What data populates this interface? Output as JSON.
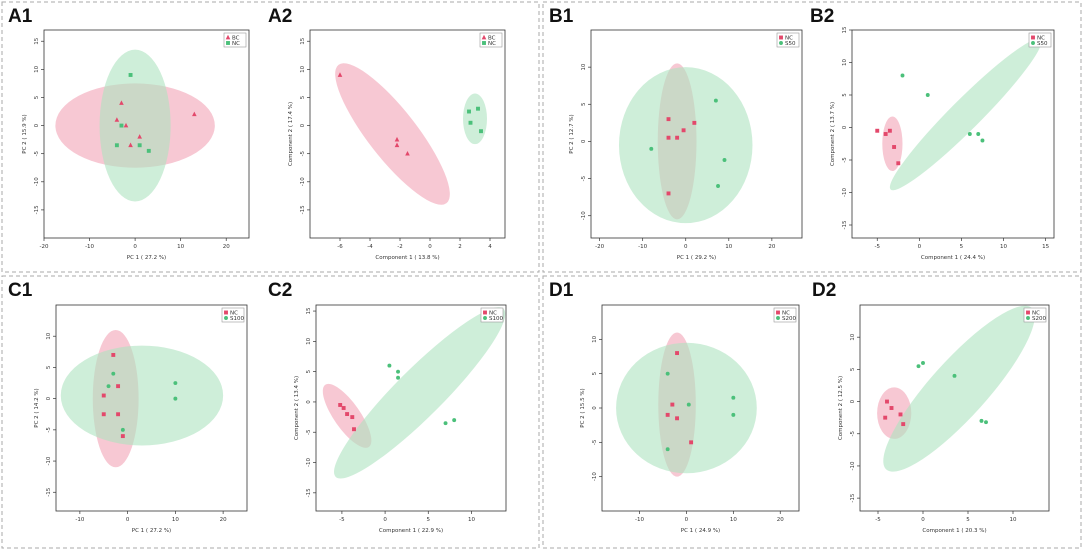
{
  "colors": {
    "red": "#e3486b",
    "red_fill": "#f2a3b6",
    "green": "#4bc07a",
    "green_fill": "#aee3bf"
  },
  "groups": [
    {
      "label": "A1",
      "subtitle": "",
      "order": 0
    },
    {
      "label": "B1",
      "subtitle": "",
      "order": 1
    },
    {
      "label": "C1",
      "subtitle": "",
      "order": 2
    },
    {
      "label": "D1",
      "subtitle": "",
      "order": 3
    }
  ],
  "chart_data": [
    {
      "panel": "A1",
      "type": "scatter",
      "xlabel": "PC 1 ( 27.2 %)",
      "ylabel": "PC 2 ( 15.9 %)",
      "xlim": [
        -20,
        25
      ],
      "ylim": [
        -20,
        17
      ],
      "xticks": [
        -20,
        -10,
        0,
        10,
        20
      ],
      "yticks": [
        -15,
        -10,
        -5,
        0,
        5,
        10,
        15
      ],
      "series": [
        {
          "name": "BC",
          "marker": "triangle",
          "color": "red",
          "points": [
            [
              -3,
              4
            ],
            [
              -4,
              1
            ],
            [
              -2,
              0
            ],
            [
              1,
              -2
            ],
            [
              -1,
              -3.5
            ],
            [
              13,
              2
            ]
          ],
          "ellipse": {
            "cx": 0,
            "cy": 0,
            "rx": 17.5,
            "ry": 7.5,
            "angle": 0
          }
        },
        {
          "name": "NC",
          "marker": "square",
          "color": "green",
          "points": [
            [
              -1,
              9
            ],
            [
              -3,
              0
            ],
            [
              -4,
              -3.5
            ],
            [
              1,
              -3.5
            ],
            [
              3,
              -4.5
            ]
          ],
          "ellipse": {
            "cx": 0,
            "cy": 0,
            "rx": 7.8,
            "ry": 13.5,
            "angle": 0
          }
        }
      ],
      "legend_order": [
        "BC",
        "NC"
      ]
    },
    {
      "panel": "A2",
      "type": "scatter",
      "xlabel": "Component 1 ( 13.8 %)",
      "ylabel": "Component 2 ( 17.4 %)",
      "xlim": [
        -8,
        5
      ],
      "ylim": [
        -20,
        17
      ],
      "xticks": [
        -6,
        -4,
        -2,
        0,
        2,
        4
      ],
      "yticks": [
        -15,
        -10,
        -5,
        0,
        5,
        10,
        15
      ],
      "series": [
        {
          "name": "BC",
          "marker": "triangle",
          "color": "red",
          "points": [
            [
              -6,
              9
            ],
            [
              -2.2,
              -2.5
            ],
            [
              -2.2,
              -3.5
            ],
            [
              -1.5,
              -5
            ]
          ],
          "ellipse": {
            "cx": -2.5,
            "cy": -1.5,
            "rx": 3.6,
            "ry": 1.0,
            "angle": 52,
            "units": "norm"
          }
        },
        {
          "name": "NC",
          "marker": "square",
          "color": "green",
          "points": [
            [
              2.6,
              2.5
            ],
            [
              3.2,
              3
            ],
            [
              2.7,
              0.5
            ],
            [
              3.4,
              -1
            ]
          ],
          "ellipse": {
            "cx": 3.0,
            "cy": 1.2,
            "rx": 0.8,
            "ry": 4.5,
            "angle": 0
          }
        }
      ],
      "legend_order": [
        "BC",
        "NC"
      ]
    },
    {
      "panel": "B1",
      "type": "scatter",
      "xlabel": "PC 1 ( 29.2 %)",
      "ylabel": "PC 2 ( 12.7 %)",
      "xlim": [
        -22,
        27
      ],
      "ylim": [
        -13,
        15
      ],
      "xticks": [
        -20,
        -10,
        0,
        10,
        20
      ],
      "yticks": [
        -10,
        -5,
        0,
        5,
        10
      ],
      "series": [
        {
          "name": "NC",
          "marker": "square",
          "color": "red",
          "points": [
            [
              -4,
              3
            ],
            [
              2,
              2.5
            ],
            [
              -0.5,
              1.5
            ],
            [
              -4,
              0.5
            ],
            [
              -2,
              0.5
            ],
            [
              -4,
              -7
            ]
          ],
          "ellipse": {
            "cx": -2,
            "cy": 0,
            "rx": 4.5,
            "ry": 10.5,
            "angle": 0
          }
        },
        {
          "name": "S50",
          "marker": "circle",
          "color": "green",
          "points": [
            [
              7,
              5.5
            ],
            [
              -8,
              -1
            ],
            [
              9,
              -2.5
            ],
            [
              7.5,
              -6
            ]
          ],
          "ellipse": {
            "cx": 0,
            "cy": -0.5,
            "rx": 15.5,
            "ry": 10.5,
            "angle": 0
          }
        }
      ],
      "legend_order": [
        "NC",
        "S50"
      ]
    },
    {
      "panel": "B2",
      "type": "scatter",
      "xlabel": "Component 1 ( 24.4 %)",
      "ylabel": "Component 2 ( 13.7 %)",
      "xlim": [
        -8,
        16
      ],
      "ylim": [
        -17,
        15
      ],
      "xticks": [
        -5,
        0,
        5,
        10,
        15
      ],
      "yticks": [
        -15,
        -10,
        -5,
        0,
        5,
        10,
        15
      ],
      "series": [
        {
          "name": "NC",
          "marker": "square",
          "color": "red",
          "points": [
            [
              -5,
              -0.5
            ],
            [
              -3.5,
              -0.5
            ],
            [
              -4,
              -1
            ],
            [
              -3,
              -3
            ],
            [
              -2.5,
              -5.5
            ]
          ],
          "ellipse": {
            "cx": -3.2,
            "cy": -2.5,
            "rx": 1.2,
            "ry": 4.2,
            "angle": 0
          }
        },
        {
          "name": "S50",
          "marker": "circle",
          "color": "green",
          "points": [
            [
              -2,
              8
            ],
            [
              1,
              5
            ],
            [
              6,
              -1
            ],
            [
              7,
              -1
            ],
            [
              7.5,
              -2
            ]
          ],
          "ellipse": {
            "cx": 5.5,
            "cy": 2,
            "rx": 4.2,
            "ry": 0.6,
            "angle": -45,
            "units": "norm"
          }
        }
      ],
      "legend_order": [
        "NC",
        "S50"
      ]
    },
    {
      "panel": "C1",
      "type": "scatter",
      "xlabel": "PC 1 ( 27.2 %)",
      "ylabel": "PC 2 ( 14.2 %)",
      "xlim": [
        -15,
        25
      ],
      "ylim": [
        -18,
        15
      ],
      "xticks": [
        -10,
        0,
        10,
        20
      ],
      "yticks": [
        -15,
        -10,
        -5,
        0,
        5,
        10
      ],
      "series": [
        {
          "name": "NC",
          "marker": "square",
          "color": "red",
          "points": [
            [
              -3,
              7
            ],
            [
              -2,
              2
            ],
            [
              -5,
              0.5
            ],
            [
              -5,
              -2.5
            ],
            [
              -2,
              -2.5
            ],
            [
              -1,
              -6
            ]
          ],
          "ellipse": {
            "cx": -2.5,
            "cy": 0,
            "rx": 4.8,
            "ry": 11,
            "angle": 0
          }
        },
        {
          "name": "S100",
          "marker": "circle",
          "color": "green",
          "points": [
            [
              -3,
              4
            ],
            [
              -4,
              2
            ],
            [
              -1,
              -5
            ],
            [
              10,
              2.5
            ],
            [
              10,
              0
            ]
          ],
          "ellipse": {
            "cx": 3,
            "cy": 0.5,
            "rx": 17,
            "ry": 8,
            "angle": 0
          }
        }
      ],
      "legend_order": [
        "NC",
        "S100"
      ]
    },
    {
      "panel": "C2",
      "type": "scatter",
      "xlabel": "Component 1 ( 22.9 %)",
      "ylabel": "Component 2 ( 13.4 %)",
      "xlim": [
        -8,
        14
      ],
      "ylim": [
        -18,
        16
      ],
      "xticks": [
        -5,
        0,
        5,
        10
      ],
      "yticks": [
        -15,
        -10,
        -5,
        0,
        5,
        10,
        15
      ],
      "series": [
        {
          "name": "NC",
          "marker": "square",
          "color": "red",
          "points": [
            [
              -5.2,
              -0.5
            ],
            [
              -4.8,
              -1
            ],
            [
              -4.4,
              -2
            ],
            [
              -3.8,
              -2.5
            ],
            [
              -3.6,
              -4.5
            ]
          ],
          "ellipse": {
            "cx": -4.4,
            "cy": -2.3,
            "rx": 1.6,
            "ry": 0.55,
            "angle": 55,
            "units": "norm"
          }
        },
        {
          "name": "S100",
          "marker": "circle",
          "color": "green",
          "points": [
            [
              0.5,
              6
            ],
            [
              1.5,
              5
            ],
            [
              1.5,
              4
            ],
            [
              7,
              -3.5
            ],
            [
              8,
              -3
            ]
          ],
          "ellipse": {
            "cx": 4,
            "cy": 1.5,
            "rx": 5.0,
            "ry": 1.0,
            "angle": -45,
            "units": "norm"
          }
        }
      ],
      "legend_order": [
        "NC",
        "S100"
      ]
    },
    {
      "panel": "D1",
      "type": "scatter",
      "xlabel": "PC 1 ( 24.9 %)",
      "ylabel": "PC 2 ( 15.5 %)",
      "xlim": [
        -18,
        24
      ],
      "ylim": [
        -15,
        15
      ],
      "xticks": [
        -10,
        0,
        10,
        20
      ],
      "yticks": [
        -10,
        -5,
        0,
        5,
        10
      ],
      "series": [
        {
          "name": "NC",
          "marker": "square",
          "color": "red",
          "points": [
            [
              -2,
              8
            ],
            [
              -3,
              0.5
            ],
            [
              -4,
              -1
            ],
            [
              -2,
              -1.5
            ],
            [
              1,
              -5
            ]
          ],
          "ellipse": {
            "cx": -2,
            "cy": 0.5,
            "rx": 4,
            "ry": 10.5,
            "angle": 0
          }
        },
        {
          "name": "S200",
          "marker": "circle",
          "color": "green",
          "points": [
            [
              -4,
              5
            ],
            [
              -4,
              -6
            ],
            [
              0.5,
              0.5
            ],
            [
              10,
              1.5
            ],
            [
              10,
              -1
            ]
          ],
          "ellipse": {
            "cx": 0,
            "cy": 0,
            "rx": 15,
            "ry": 9.5,
            "angle": 0
          }
        }
      ],
      "legend_order": [
        "NC",
        "S200"
      ]
    },
    {
      "panel": "D2",
      "type": "scatter",
      "xlabel": "Component 1 ( 20.3 %)",
      "ylabel": "Component 2 ( 12.5 %)",
      "xlim": [
        -7,
        14
      ],
      "ylim": [
        -17,
        15
      ],
      "xticks": [
        -5,
        0,
        5,
        10
      ],
      "yticks": [
        -15,
        -10,
        -5,
        0,
        5,
        10
      ],
      "series": [
        {
          "name": "NC",
          "marker": "square",
          "color": "red",
          "points": [
            [
              -4,
              0
            ],
            [
              -3.5,
              -1
            ],
            [
              -4.2,
              -2.5
            ],
            [
              -2.5,
              -2
            ],
            [
              -2.2,
              -3.5
            ]
          ],
          "ellipse": {
            "cx": -3.2,
            "cy": -1.8,
            "rx": 1.9,
            "ry": 4.0,
            "angle": 0
          }
        },
        {
          "name": "S200",
          "marker": "circle",
          "color": "green",
          "points": [
            [
              -0.5,
              5.5
            ],
            [
              0,
              6
            ],
            [
              3.5,
              4
            ],
            [
              6.5,
              -3
            ],
            [
              7,
              -3.2
            ]
          ],
          "ellipse": {
            "cx": 4,
            "cy": 2,
            "rx": 4.6,
            "ry": 1.2,
            "angle": -48,
            "units": "norm"
          }
        }
      ],
      "legend_order": [
        "NC",
        "S200"
      ]
    }
  ]
}
